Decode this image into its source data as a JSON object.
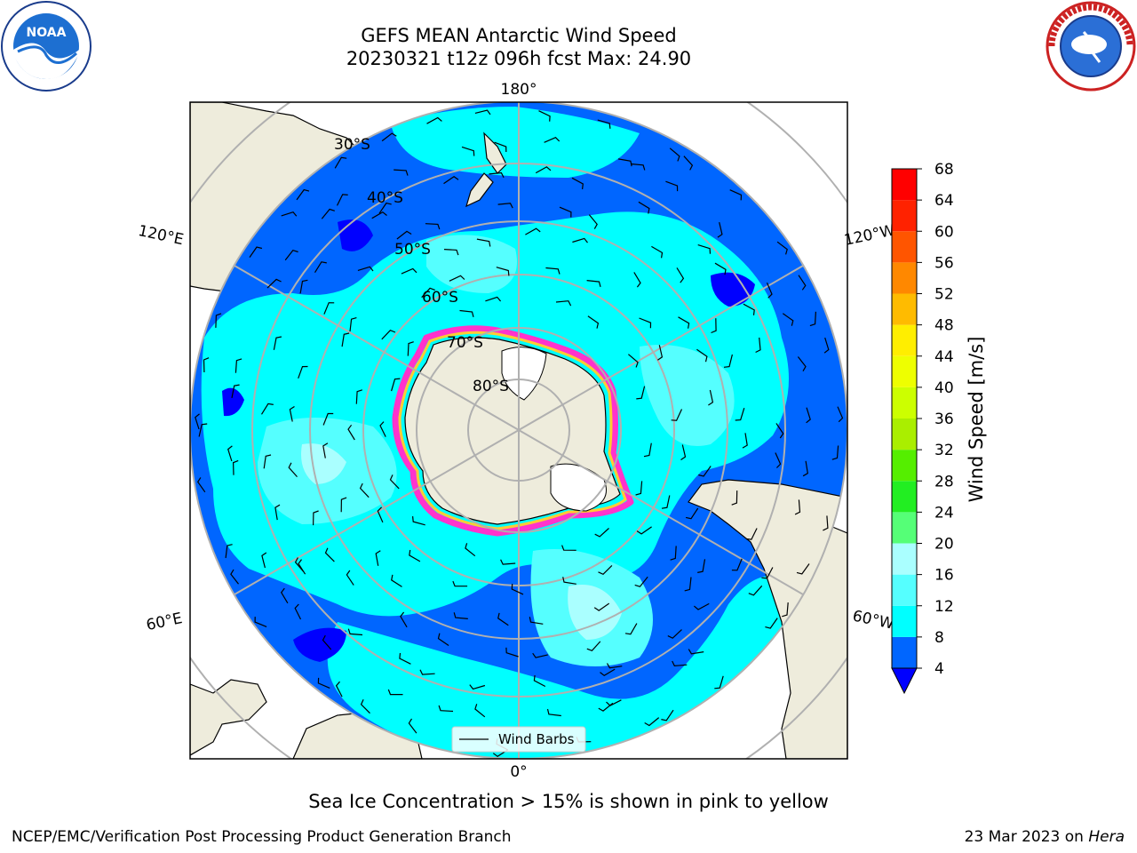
{
  "title": {
    "line1": "GEFS MEAN Antarctic Wind Speed",
    "line2": "20230321 t12z 096h fcst   Max: 24.90"
  },
  "map": {
    "projection": "south-polar-stereographic",
    "lon_labels": {
      "top": "180°",
      "left_upper": "120°E",
      "right_upper": "120°W",
      "left_lower": "60°E",
      "right_lower": "60°W",
      "bottom": "0°"
    },
    "lat_labels": [
      "30°S",
      "40°S",
      "50°S",
      "60°S",
      "70°S",
      "80°S"
    ],
    "legend_label": "Wind Barbs",
    "colors": {
      "land": "#eeecdc",
      "ocean_4_8": "#0066ff",
      "ocean_8_12": "#00ffff",
      "ocean_12_16": "#55ffff",
      "ocean_16_20": "#aaffff",
      "ice_edge": "#ff33cc",
      "ice_inner": "#ffcc33",
      "grid": "#b0b0b0"
    }
  },
  "colorbar": {
    "label": "Wind Speed [m/s]",
    "ticks": [
      "4",
      "8",
      "12",
      "16",
      "20",
      "24",
      "28",
      "32",
      "36",
      "40",
      "44",
      "48",
      "52",
      "56",
      "60",
      "64",
      "68"
    ],
    "colors": [
      "#0000ff",
      "#0066ff",
      "#00ffff",
      "#55ffff",
      "#aaffff",
      "#55ff77",
      "#22ee22",
      "#55ee00",
      "#aaee00",
      "#ccff00",
      "#eeff00",
      "#ffee00",
      "#ffbb00",
      "#ff8800",
      "#ff5500",
      "#ff2200",
      "#ff0000"
    ],
    "extend_color": "#0000ff"
  },
  "footer": {
    "note": "Sea Ice Concentration > 15% is shown in pink to yellow",
    "left": "NCEP/EMC/Verification Post Processing Product Generation Branch",
    "right_date": "23 Mar 2023 on ",
    "right_host": "Hera"
  }
}
